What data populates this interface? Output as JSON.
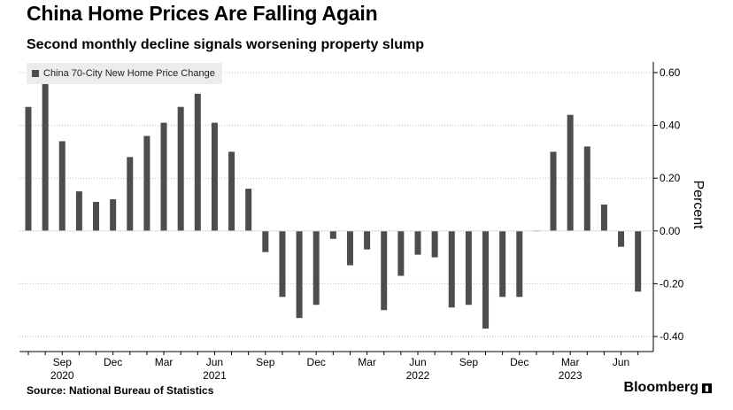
{
  "title": "China Home Prices Are Falling Again",
  "subtitle": "Second monthly decline signals worsening property slump",
  "source": "Source: National Bureau of Statistics",
  "brand": "Bloomberg",
  "chart_data": {
    "type": "bar",
    "series": [
      {
        "name": "China 70-City New Home Price Change",
        "color": "#4d4d4d",
        "values": [
          0.47,
          0.56,
          0.34,
          0.15,
          0.11,
          0.12,
          0.28,
          0.36,
          0.41,
          0.47,
          0.52,
          0.41,
          0.3,
          0.16,
          -0.08,
          -0.25,
          -0.33,
          -0.28,
          -0.03,
          -0.13,
          -0.07,
          -0.3,
          -0.17,
          -0.09,
          -0.1,
          -0.29,
          -0.28,
          -0.37,
          -0.25,
          -0.25,
          0.0,
          0.3,
          0.44,
          0.32,
          0.1,
          -0.06,
          -0.23
        ]
      }
    ],
    "categories": [
      "2020-07",
      "2020-08",
      "2020-09",
      "2020-10",
      "2020-11",
      "2020-12",
      "2021-01",
      "2021-02",
      "2021-03",
      "2021-04",
      "2021-05",
      "2021-06",
      "2021-07",
      "2021-08",
      "2021-09",
      "2021-10",
      "2021-11",
      "2021-12",
      "2022-01",
      "2022-02",
      "2022-03",
      "2022-04",
      "2022-05",
      "2022-06",
      "2022-07",
      "2022-08",
      "2022-09",
      "2022-10",
      "2022-11",
      "2022-12",
      "2023-01",
      "2023-02",
      "2023-03",
      "2023-04",
      "2023-05",
      "2023-06",
      "2023-07"
    ],
    "x_tick_labels": [
      {
        "category": "2020-09",
        "label": "Sep"
      },
      {
        "category": "2020-12",
        "label": "Dec"
      },
      {
        "category": "2021-03",
        "label": "Mar"
      },
      {
        "category": "2021-06",
        "label": "Jun"
      },
      {
        "category": "2021-09",
        "label": "Sep"
      },
      {
        "category": "2021-12",
        "label": "Dec"
      },
      {
        "category": "2022-03",
        "label": "Mar"
      },
      {
        "category": "2022-06",
        "label": "Jun"
      },
      {
        "category": "2022-09",
        "label": "Sep"
      },
      {
        "category": "2022-12",
        "label": "Dec"
      },
      {
        "category": "2023-03",
        "label": "Mar"
      },
      {
        "category": "2023-06",
        "label": "Jun"
      }
    ],
    "year_labels": [
      {
        "category": "2020-09",
        "label": "2020"
      },
      {
        "category": "2021-06",
        "label": "2021"
      },
      {
        "category": "2022-06",
        "label": "2022"
      },
      {
        "category": "2023-03",
        "label": "2023"
      }
    ],
    "ylabel": "Percent",
    "ylim": [
      -0.45,
      0.62
    ],
    "yticks": [
      0.6,
      0.4,
      0.2,
      0.0,
      -0.2,
      -0.4
    ],
    "ytick_labels": [
      "0.60",
      "0.40",
      "0.20",
      "0.00",
      "-0.20",
      "-0.40"
    ],
    "y_axis_side": "right",
    "grid": "dotted horizontal",
    "legend": "top-left"
  }
}
